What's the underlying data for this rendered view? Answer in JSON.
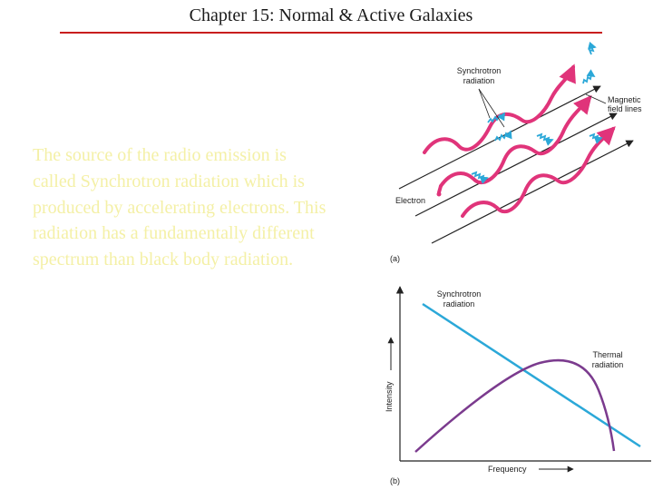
{
  "slide": {
    "title": "Chapter 15: Normal & Active Galaxies",
    "body": "The source of the radio emission is called Synchrotron radiation which is produced by accelerating electrons.  This radiation has a fundamentally different spectrum than black body radiation."
  },
  "figure_a": {
    "panel_label": "(a)",
    "label_synchrotron": [
      "Synchrotron",
      "radiation"
    ],
    "label_field": [
      "Magnetic",
      "field lines"
    ],
    "label_electron": "Electron",
    "colors": {
      "electron_path": "#e0347a",
      "radiation": "#2ba8d8",
      "field_lines": "#222222"
    }
  },
  "figure_b": {
    "panel_label": "(b)",
    "ylabel": "Intensity",
    "xlabel": "Frequency",
    "label_synchrotron": [
      "Synchrotron",
      "radiation"
    ],
    "label_thermal": [
      "Thermal",
      "radiation"
    ],
    "colors": {
      "synchrotron": "#2ba8d8",
      "thermal": "#7b3b8e"
    }
  }
}
